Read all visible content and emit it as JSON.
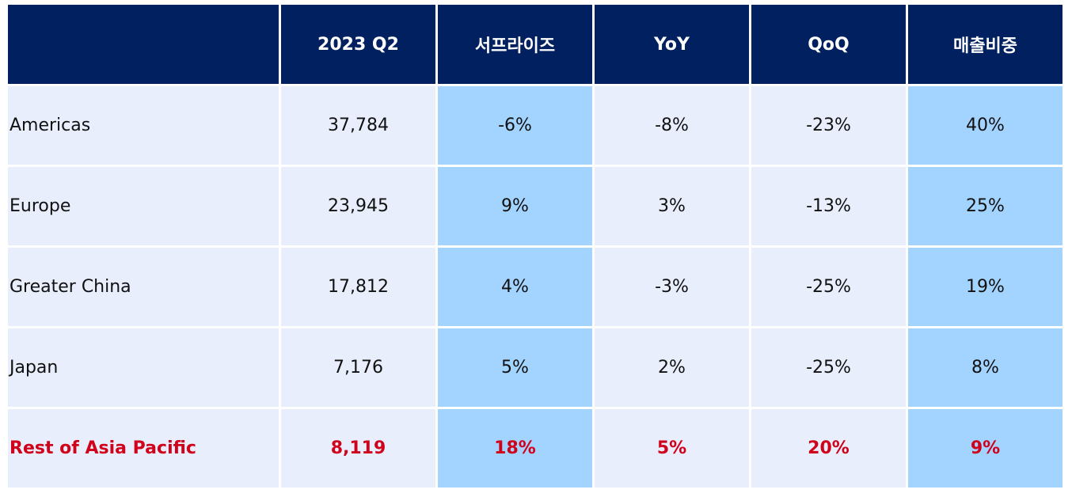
{
  "table": {
    "headers": [
      "",
      "2023 Q2",
      "서프라이즈",
      "YoY",
      "QoQ",
      "매출비중"
    ],
    "rows": [
      {
        "region": "Americas",
        "q2": "37,784",
        "surprise": "-6%",
        "yoy": "-8%",
        "qoq": "-23%",
        "share": "40%"
      },
      {
        "region": "Europe",
        "q2": "23,945",
        "surprise": "9%",
        "yoy": "3%",
        "qoq": "-13%",
        "share": "25%"
      },
      {
        "region": "Greater China",
        "q2": "17,812",
        "surprise": "4%",
        "yoy": "-3%",
        "qoq": "-25%",
        "share": "19%"
      },
      {
        "region": "Japan",
        "q2": "7,176",
        "surprise": "5%",
        "yoy": "2%",
        "qoq": "-25%",
        "share": "8%"
      },
      {
        "region": "Rest of Asia Pacific",
        "q2": "8,119",
        "surprise": "18%",
        "yoy": "5%",
        "qoq": "20%",
        "share": "9%"
      }
    ]
  },
  "colors": {
    "header_bg": "#002060",
    "cell_bg": "#e8eefc",
    "highlight_bg": "#a3d3ff",
    "emphasis_text": "#d0021b"
  }
}
